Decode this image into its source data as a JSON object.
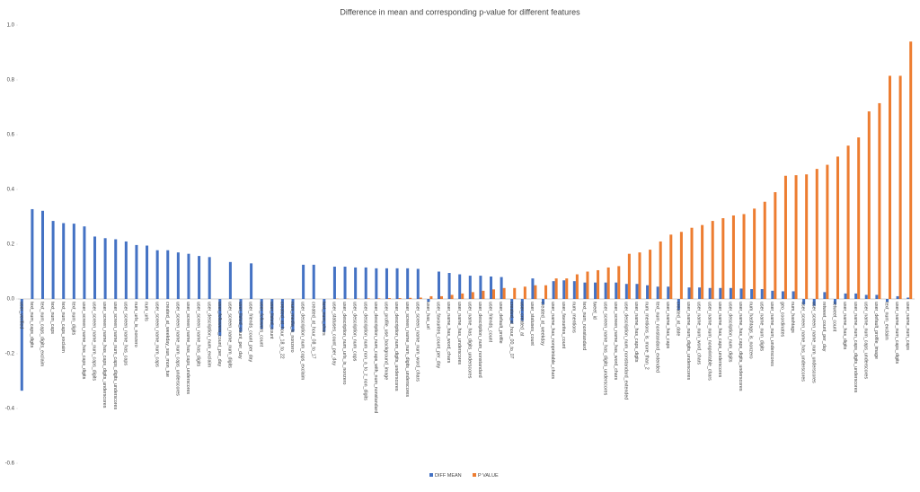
{
  "chart_data": {
    "type": "bar",
    "title": "Difference in mean and corresponding  p-value for different features",
    "categories": [
      "user_verified",
      "text_num_caps_digits",
      "text_num_caps_digits_exclaim",
      "text_num_caps",
      "text_num_caps_exclaim",
      "text_num_digits",
      "user_screen_name_has_caps_digits",
      "user_screen_name_num_caps_digits",
      "user_screen_name_has_caps_digits_underscores",
      "user_screen_name_num_caps_digits_underscores",
      "user_screen_name_has_caps",
      "num_urls_is_nonzero",
      "num_urls",
      "user_screen_name_num_caps",
      "created_at_weekday_sun_mon_tue",
      "user_screen_name_num_caps_underscores",
      "user_screen_name_has_caps_underscores",
      "user_screen_name_has_digits",
      "user_description_num_exclaim",
      "user_followers_count_per_day",
      "user_screen_name_num_digits",
      "user_listed_count_per_day",
      "user_friends_count_per_day",
      "user_followers_count",
      "user_listed_count",
      "created_at_hour_18_to_22",
      "num_media_is_nonzero",
      "user_description_num_caps_exclaim",
      "created_at_hour_08_to_17",
      "text_num_chars",
      "user_statuses_count_per_day",
      "user_description_num_urls_is_nonzero",
      "user_description_num_caps",
      "user_description_num_non_a_to_z_non_digits",
      "user_description_num_caps_with_num_nonstandard",
      "user_profile_use_background_image",
      "user_description_num_digits_underscores",
      "user_screen_name_num_digits_underscores",
      "user_screen_name_num_word_chars",
      "user_has_url",
      "user_favourites_count_per_day",
      "user_name_has_word_chars",
      "user_name_has_underscores",
      "user_name_has_digits_underscores",
      "user_description_num_nonstandard",
      "user_friends_count",
      "user_default_profile",
      "created_at_hour_00_to_07",
      "user_created_at",
      "user_statuses_count",
      "created_at_weekday",
      "user_name_has_nonprintable_chars",
      "user_favourites_count",
      "num_mentions",
      "text_num_nonstandard",
      "tweet_id",
      "user_screen_name_has_digits_underscores",
      "user_screen_name_has_word_chars",
      "user_description_num_nonstandard_extended",
      "user_name_has_caps_digits",
      "num_mentions_is_more_than_2",
      "text_num_nonstandard_extended",
      "user_name_has_caps",
      "created_at_date",
      "user_name_num_digits_underscores",
      "user_name_num_word_chars",
      "user_name_num_nonprintable_chars",
      "user_name_has_caps_underscores",
      "user_description_num_digits",
      "user_name_has_caps_digits_underscores",
      "num_hashtags_is_nonzero",
      "user_name_num_digits",
      "user_name_num_underscores",
      "geo_coordinates",
      "num_hashtags",
      "user_screen_name_has_underscores",
      "user_screen_name_num_underscores",
      "retweet_count_per_day",
      "retweet_count",
      "user_name_has_digits",
      "user_name_num_caps_digits_underscores",
      "user_name_num_caps_underscores",
      "user_default_profile_image",
      "text_num_exclaim",
      "user_name_num_caps_digits",
      "user_name_num_caps"
    ],
    "series": [
      {
        "name": "DIFF MEAN",
        "color": "#4472c4",
        "values": [
          -0.335,
          0.328,
          0.322,
          0.285,
          0.277,
          0.275,
          0.265,
          0.228,
          0.222,
          0.218,
          0.21,
          0.197,
          0.195,
          0.178,
          0.178,
          0.17,
          0.165,
          0.157,
          0.153,
          -0.135,
          0.135,
          -0.12,
          0.13,
          -0.11,
          -0.11,
          -0.11,
          -0.12,
          0.125,
          0.125,
          -0.12,
          0.118,
          0.118,
          0.115,
          0.115,
          0.112,
          0.112,
          0.112,
          0.112,
          0.11,
          -0.01,
          0.1,
          0.095,
          0.09,
          0.085,
          0.085,
          0.082,
          0.08,
          -0.09,
          -0.08,
          0.075,
          -0.02,
          0.065,
          0.068,
          0.065,
          0.06,
          0.06,
          0.06,
          0.06,
          0.055,
          0.055,
          0.05,
          0.045,
          0.045,
          -0.04,
          0.042,
          0.042,
          0.04,
          0.04,
          0.04,
          0.038,
          0.036,
          0.036,
          0.03,
          0.028,
          0.028,
          -0.02,
          -0.025,
          0.025,
          -0.02,
          0.02,
          0.02,
          0.015,
          0.015,
          -0.01,
          0.01,
          0.005
        ]
      },
      {
        "name": "P VALUE",
        "color": "#ed7d31",
        "values": [
          0,
          0,
          0,
          0,
          0,
          0,
          0,
          0,
          0,
          0,
          0,
          0,
          0,
          0,
          0,
          0,
          0,
          0,
          0,
          0,
          0,
          0,
          0,
          0,
          0,
          0,
          0,
          0,
          0,
          0,
          0.001,
          0.001,
          0.001,
          0.002,
          0.002,
          0.003,
          0.003,
          0.004,
          0.005,
          0.01,
          0.01,
          0.015,
          0.02,
          0.025,
          0.03,
          0.035,
          0.04,
          0.04,
          0.045,
          0.05,
          0.05,
          0.075,
          0.075,
          0.09,
          0.1,
          0.105,
          0.115,
          0.12,
          0.165,
          0.17,
          0.18,
          0.21,
          0.235,
          0.245,
          0.26,
          0.27,
          0.285,
          0.295,
          0.305,
          0.31,
          0.33,
          0.355,
          0.39,
          0.45,
          0.452,
          0.455,
          0.475,
          0.49,
          0.52,
          0.56,
          0.59,
          0.685,
          0.715,
          0.815,
          0.815,
          0.94
        ]
      }
    ],
    "ylim": [
      -0.6,
      1.0
    ],
    "yticks": [
      -0.6,
      -0.4,
      -0.2,
      {
        "value": 0,
        "label": "0.0"
      },
      0.2,
      0.4,
      0.6,
      0.8,
      {
        "value": 1,
        "label": "1.0"
      }
    ],
    "grid": false,
    "legend": "bottom"
  }
}
